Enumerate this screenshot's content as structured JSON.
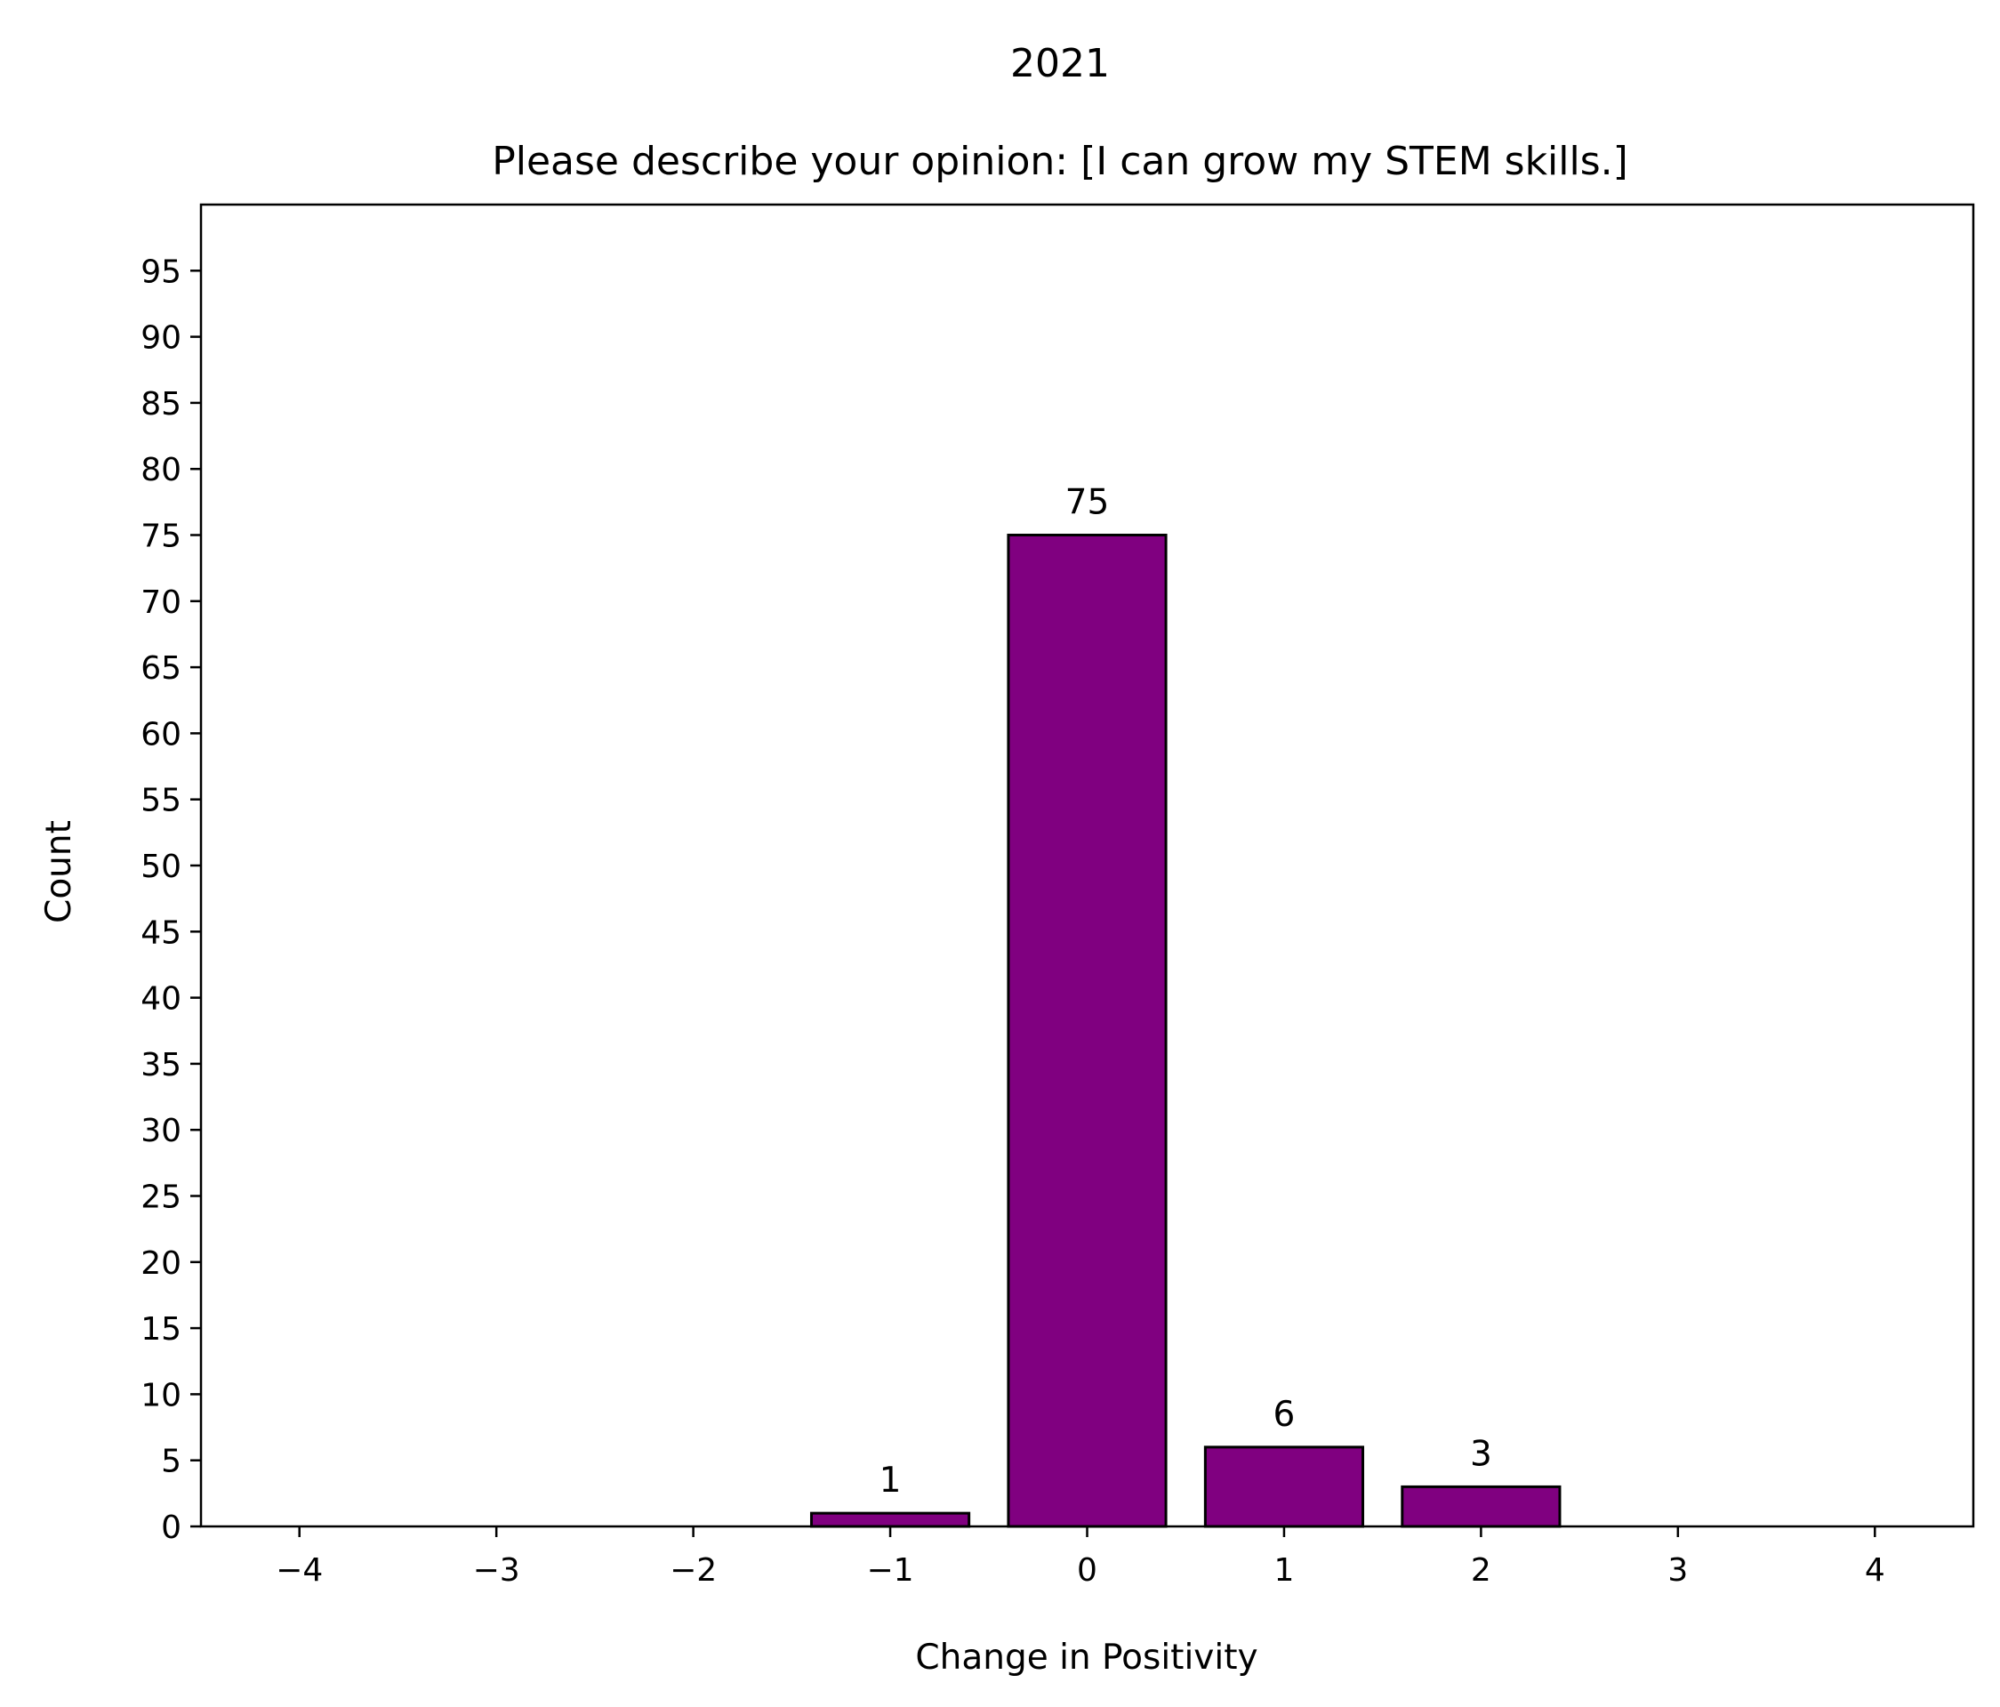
{
  "chart_data": {
    "type": "bar",
    "suptitle": "2021",
    "title": "Please describe your opinion: [I can grow my STEM skills.]",
    "xlabel": "Change in Positivity",
    "ylabel": "Count",
    "x": [
      -1,
      0,
      1,
      2
    ],
    "values": [
      1,
      75,
      6,
      3
    ],
    "bar_labels": [
      "1",
      "75",
      "6",
      "3"
    ],
    "xlim": [
      -4.5,
      4.5
    ],
    "ylim": [
      0,
      100
    ],
    "xticks": [
      -4,
      -3,
      -2,
      -1,
      0,
      1,
      2,
      3,
      4
    ],
    "xtick_labels": [
      "−4",
      "−3",
      "−2",
      "−1",
      "0",
      "1",
      "2",
      "3",
      "4"
    ],
    "yticks": [
      0,
      5,
      10,
      15,
      20,
      25,
      30,
      35,
      40,
      45,
      50,
      55,
      60,
      65,
      70,
      75,
      80,
      85,
      90,
      95
    ],
    "ytick_labels": [
      "0",
      "5",
      "10",
      "15",
      "20",
      "25",
      "30",
      "35",
      "40",
      "45",
      "50",
      "55",
      "60",
      "65",
      "70",
      "75",
      "80",
      "85",
      "90",
      "95"
    ],
    "bar_color": "#800080",
    "edge_color": "#000000",
    "grid": false,
    "legend": false
  }
}
